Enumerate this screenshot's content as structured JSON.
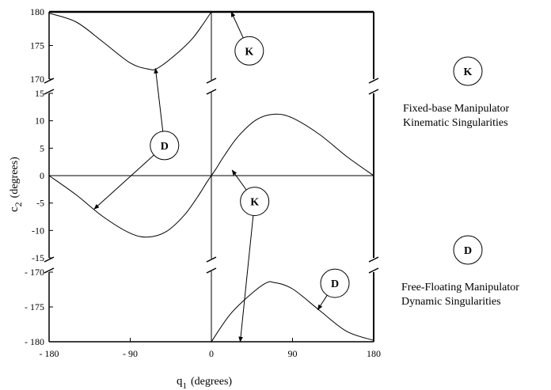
{
  "chart_data": {
    "type": "line",
    "xlabel": {
      "main": "q",
      "sub": "1",
      "unit": "(degrees)"
    },
    "ylabel": {
      "main": "c",
      "sub": "2",
      "unit": "(degrees)"
    },
    "xlim": [
      -180,
      180
    ],
    "x_ticks": [
      {
        "value": -180,
        "label": "- 180"
      },
      {
        "value": -90,
        "label": "- 90"
      },
      {
        "value": 0,
        "label": "0"
      },
      {
        "value": 90,
        "label": "90"
      },
      {
        "value": 180,
        "label": "180"
      }
    ],
    "y_segments": [
      {
        "range": [
          170,
          180
        ],
        "ticks": [
          {
            "value": 180,
            "label": "180"
          },
          {
            "value": 175,
            "label": "175"
          },
          {
            "value": 170,
            "label": "170"
          }
        ]
      },
      {
        "range": [
          -15,
          15
        ],
        "ticks": [
          {
            "value": 15,
            "label": "15"
          },
          {
            "value": 10,
            "label": "10"
          },
          {
            "value": 5,
            "label": "5"
          },
          {
            "value": 0,
            "label": "0"
          },
          {
            "value": -5,
            "label": "-5"
          },
          {
            "value": -10,
            "label": "-10"
          },
          {
            "value": -15,
            "label": "-15"
          }
        ]
      },
      {
        "range": [
          -180,
          -170
        ],
        "ticks": [
          {
            "value": -170,
            "label": "- 170"
          },
          {
            "value": -175,
            "label": "- 175"
          },
          {
            "value": -180,
            "label": "- 180"
          }
        ]
      }
    ],
    "series": [
      {
        "segment": 0,
        "x": [
          -180,
          -150,
          -120,
          -90,
          -70,
          -60,
          -40,
          -20,
          0
        ],
        "y": [
          179.8,
          178.5,
          175.5,
          172.4,
          171.5,
          171.6,
          173.6,
          176.2,
          180
        ]
      },
      {
        "segment": 1,
        "x": [
          -180,
          -150,
          -120,
          -90,
          -70,
          -50,
          -30,
          -15,
          -5,
          0
        ],
        "y": [
          0,
          -3.5,
          -7.5,
          -10.5,
          -11.2,
          -10.2,
          -7.2,
          -3.8,
          -1.2,
          0
        ]
      },
      {
        "segment": 1,
        "x": [
          0,
          5,
          15,
          30,
          50,
          70,
          90,
          120,
          150,
          180
        ],
        "y": [
          0,
          1.2,
          3.8,
          7.2,
          10.2,
          11.2,
          10.5,
          7.5,
          3.5,
          0
        ]
      },
      {
        "segment": 2,
        "x": [
          0,
          20,
          40,
          60,
          70,
          90,
          120,
          150,
          180
        ],
        "y": [
          -180,
          -176.2,
          -173.6,
          -171.6,
          -171.5,
          -172.4,
          -175.5,
          -178.5,
          -179.8
        ]
      }
    ],
    "markers": [
      {
        "id": "K",
        "x": 42,
        "y": 174.2,
        "segment": 0,
        "arrow_to": {
          "x": 22,
          "y": 180
        }
      },
      {
        "id": "D",
        "x": -52,
        "y": 5.5,
        "segment": 1,
        "arrow_to": [
          {
            "x": -62,
            "y": 171.6,
            "segment": 0
          },
          {
            "x": -130,
            "y": -6.1,
            "segment": 1
          }
        ]
      },
      {
        "id": "K",
        "x": 48,
        "y": -4.7,
        "segment": 1,
        "arrow_to": [
          {
            "x": 23,
            "y": 1.0,
            "segment": 1
          },
          {
            "x": 32,
            "y": -180,
            "segment": 2
          }
        ]
      },
      {
        "id": "D",
        "x": 137,
        "y": -171.6,
        "segment": 2,
        "arrow_to": {
          "x": 118,
          "y": -175.4,
          "segment": 2
        }
      }
    ],
    "legend": [
      {
        "symbol": "K",
        "lines": [
          "Fixed-base Manipulator",
          "Kinematic Singularities"
        ]
      },
      {
        "symbol": "D",
        "lines": [
          "Free-Floating Manipulator",
          "Dynamic Singularities"
        ]
      }
    ]
  }
}
